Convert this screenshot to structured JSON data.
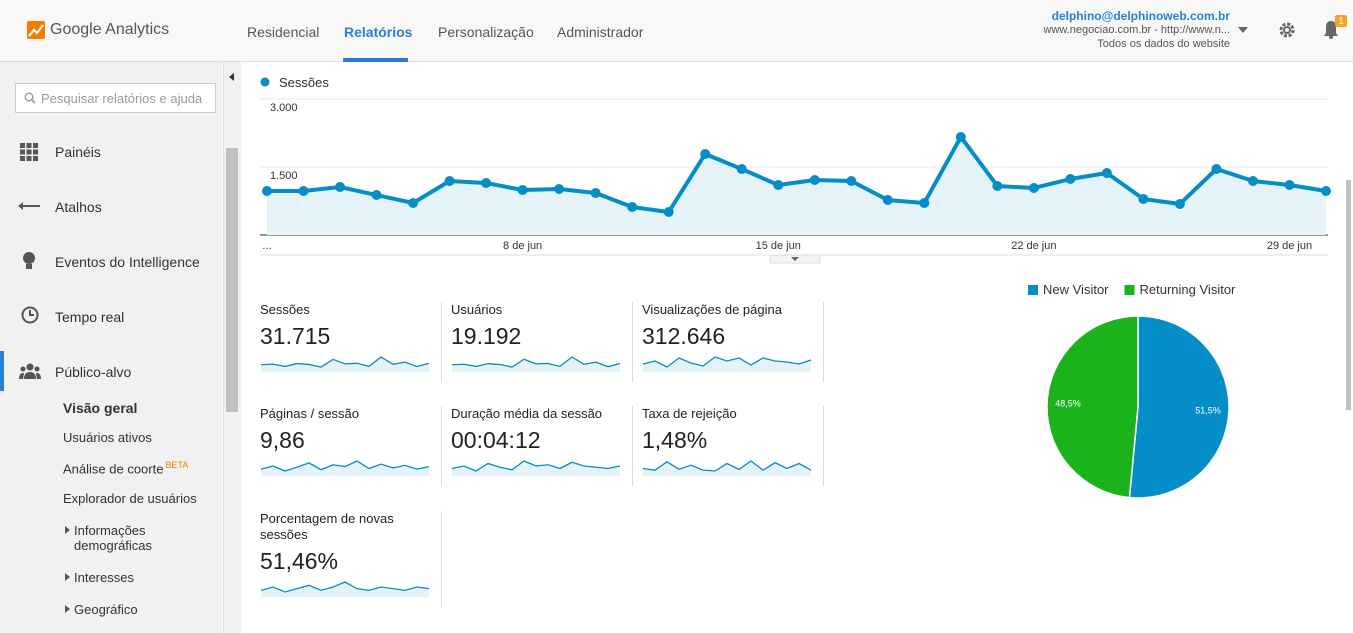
{
  "header": {
    "logo": "Google Analytics",
    "nav": [
      "Residencial",
      "Relatórios",
      "Personalização",
      "Administrador"
    ],
    "account": {
      "email": "delphino@delphinoweb.com.br",
      "property": "www.negociao.com.br - http://www.n...",
      "view": "Todos os dados do website"
    },
    "notification_count": 1
  },
  "sidebar": {
    "search_placeholder": "Pesquisar relatórios e ajuda",
    "items": [
      "Painéis",
      "Atalhos",
      "Eventos do Intelligence",
      "Tempo real",
      "Público-alvo"
    ],
    "subitems": [
      "Visão geral",
      "Usuários ativos",
      "Análise de coorte",
      "Explorador de usuários",
      "Informações demográficas",
      "Interesses",
      "Geográfico"
    ],
    "beta_badge": "BETA"
  },
  "chart_data": [
    {
      "type": "line",
      "categories": [
        "...",
        null,
        null,
        null,
        null,
        null,
        null,
        "8 de jun",
        null,
        null,
        null,
        null,
        null,
        null,
        "15 de jun",
        null,
        null,
        null,
        null,
        null,
        null,
        "22 de jun",
        null,
        null,
        null,
        null,
        null,
        null,
        "29 de jun",
        null
      ],
      "series": [
        {
          "name": "Sessões",
          "color": "#058dc7",
          "values": [
            970,
            970,
            1059,
            882,
            706,
            1191,
            1147,
            993,
            1015,
            926,
            618,
            507,
            1787,
            1456,
            1103,
            1213,
            1191,
            772,
            706,
            2162,
            1081,
            1037,
            1235,
            1368,
            794,
            684,
            1456,
            1191,
            1103,
            970
          ]
        }
      ],
      "ylim": [
        0,
        3000
      ],
      "yticks": [
        {
          "value": 1500,
          "label": "1.500"
        },
        {
          "value": 3000,
          "label": "3.000"
        }
      ],
      "grid": true
    },
    {
      "type": "pie",
      "categories": [
        "New Visitor",
        "Returning Visitor"
      ],
      "values": [
        51.5,
        48.5
      ],
      "value_labels": [
        "51,5%",
        "48,5%"
      ],
      "colors": [
        "#058dc7",
        "#1bb31b"
      ]
    }
  ],
  "metrics": [
    {
      "label": "Sessões",
      "value": "31.715",
      "spark": [
        970,
        1059,
        706,
        1147,
        1015,
        618,
        1787,
        1103,
        1191,
        706,
        2162,
        1037,
        1368,
        684,
        1191
      ]
    },
    {
      "label": "Usuários",
      "value": "19.192",
      "spark": [
        600,
        650,
        450,
        700,
        620,
        400,
        1100,
        680,
        720,
        450,
        1300,
        640,
        830,
        430,
        720
      ]
    },
    {
      "label": "Visualizações de página",
      "value": "312.646",
      "spark": [
        9500,
        11000,
        8000,
        12500,
        10000,
        8500,
        13000,
        11000,
        12500,
        9000,
        12500,
        11000,
        10500,
        9500,
        11500
      ]
    },
    {
      "label": "Páginas / sessão",
      "value": "9,86",
      "spark": [
        9.5,
        10,
        9.2,
        9.8,
        10.5,
        9.4,
        10.2,
        9.9,
        10.8,
        9.6,
        10.3,
        9.7,
        10.1,
        9.5,
        9.9
      ]
    },
    {
      "label": "Duração média da sessão",
      "value": "00:04:12",
      "spark": [
        240,
        250,
        230,
        260,
        245,
        235,
        270,
        250,
        255,
        240,
        265,
        250,
        245,
        240,
        250
      ]
    },
    {
      "label": "Taxa de rejeição",
      "value": "1,48%",
      "spark": [
        1.2,
        1.0,
        2.0,
        1.1,
        1.6,
        1.0,
        0.9,
        1.8,
        1.1,
        2.1,
        1.0,
        1.9,
        1.2,
        1.8,
        1.0
      ]
    },
    {
      "label": "Porcentagem de novas sessões",
      "value": "51,46%",
      "spark": [
        50,
        52,
        49,
        51,
        53,
        50,
        52,
        55,
        51,
        50,
        52,
        51,
        50,
        52,
        51
      ]
    }
  ]
}
